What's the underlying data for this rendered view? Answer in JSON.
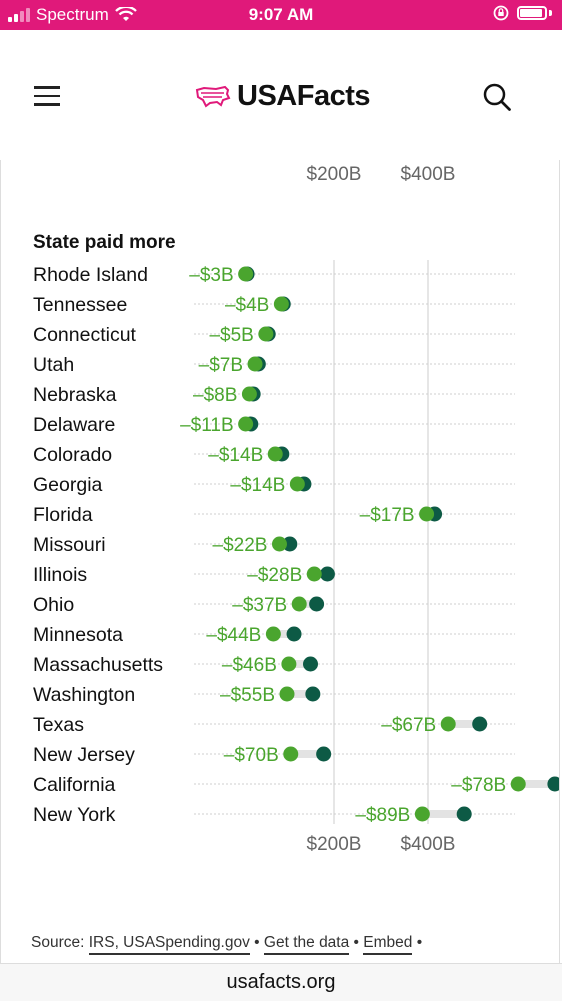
{
  "status_bar": {
    "carrier": "Spectrum",
    "time": "9:07 AM"
  },
  "header": {
    "logo_text": "USAFacts"
  },
  "colors": {
    "brand_pink": "#e0197a",
    "light_green": "#4aa52e",
    "dark_green": "#0d5a45",
    "label_green": "#4aa52e"
  },
  "icons": [
    "menu-icon",
    "usa-map-logo-icon",
    "search-icon",
    "wifi-icon",
    "battery-icon",
    "orientation-lock-icon"
  ],
  "chart_data": {
    "type": "dot-plot",
    "section_label": "State paid more",
    "x_ticks": [
      "$200B",
      "$400B"
    ],
    "x_tick_values": [
      200,
      400
    ],
    "xlim": [
      0,
      700
    ],
    "grid": true,
    "series": [
      {
        "name": "",
        "color": "#4aa52e"
      },
      {
        "name": "",
        "color": "#0d5a45"
      }
    ],
    "rows": [
      {
        "state": "Rhode Island",
        "difference": "–$3B",
        "light": 12,
        "dark": 15
      },
      {
        "state": "Tennessee",
        "difference": "–$4B",
        "light": 88,
        "dark": 92
      },
      {
        "state": "Connecticut",
        "difference": "–$5B",
        "light": 55,
        "dark": 60
      },
      {
        "state": "Utah",
        "difference": "–$7B",
        "light": 32,
        "dark": 39
      },
      {
        "state": "Nebraska",
        "difference": "–$8B",
        "light": 20,
        "dark": 28
      },
      {
        "state": "Delaware",
        "difference": "–$11B",
        "light": 12,
        "dark": 23
      },
      {
        "state": "Colorado",
        "difference": "–$14B",
        "light": 75,
        "dark": 89
      },
      {
        "state": "Georgia",
        "difference": "–$14B",
        "light": 122,
        "dark": 136
      },
      {
        "state": "Florida",
        "difference": "–$17B",
        "light": 397,
        "dark": 414
      },
      {
        "state": "Missouri",
        "difference": "–$22B",
        "light": 84,
        "dark": 106
      },
      {
        "state": "Illinois",
        "difference": "–$28B",
        "light": 158,
        "dark": 186
      },
      {
        "state": "Ohio",
        "difference": "–$37B",
        "light": 126,
        "dark": 163
      },
      {
        "state": "Minnesota",
        "difference": "–$44B",
        "light": 71,
        "dark": 115
      },
      {
        "state": "Massachusetts",
        "difference": "–$46B",
        "light": 104,
        "dark": 150
      },
      {
        "state": "Washington",
        "difference": "–$55B",
        "light": 100,
        "dark": 155
      },
      {
        "state": "Texas",
        "difference": "–$67B",
        "light": 443,
        "dark": 510
      },
      {
        "state": "New Jersey",
        "difference": "–$70B",
        "light": 108,
        "dark": 178
      },
      {
        "state": "California",
        "difference": "–$78B",
        "light": 592,
        "dark": 670
      },
      {
        "state": "New York",
        "difference": "–$89B",
        "light": 388,
        "dark": 477
      }
    ]
  },
  "footer": {
    "source_prefix": "Source:",
    "source_link": "IRS, USASpending.gov",
    "bullet": "•",
    "get_data": "Get the data",
    "embed": "Embed"
  },
  "url_bar": {
    "url": "usafacts.org"
  }
}
